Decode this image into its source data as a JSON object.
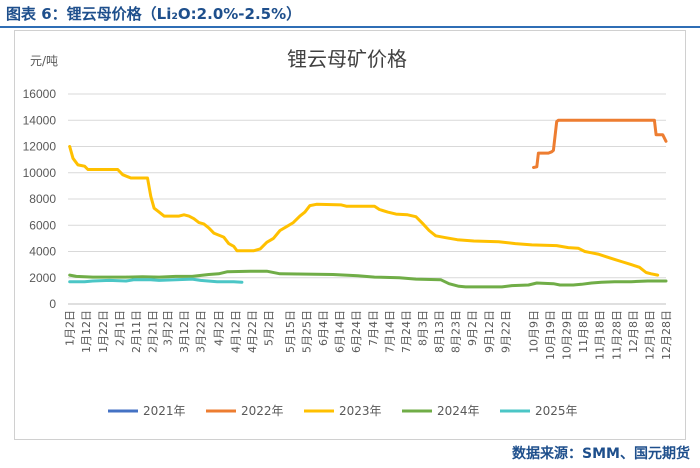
{
  "figure_title": "图表 6：锂云母价格（Li₂O:2.0%-2.5%）",
  "source": "数据来源：SMM、国元期货",
  "chart_data": {
    "type": "line",
    "title": "锂云母矿价格",
    "ylabel": "元/吨",
    "xlabel": "",
    "ylim": [
      0,
      16000
    ],
    "yticks": [
      0,
      2000,
      4000,
      6000,
      8000,
      10000,
      12000,
      14000,
      16000
    ],
    "xlim": [
      0,
      361
    ],
    "xticks": [
      {
        "label": "1月2日",
        "day": 1
      },
      {
        "label": "1月12日",
        "day": 11
      },
      {
        "label": "1月22日",
        "day": 21
      },
      {
        "label": "2月1日",
        "day": 31
      },
      {
        "label": "2月11日",
        "day": 41
      },
      {
        "label": "2月21日",
        "day": 51
      },
      {
        "label": "3月2日",
        "day": 60
      },
      {
        "label": "3月12日",
        "day": 70
      },
      {
        "label": "3月22日",
        "day": 80
      },
      {
        "label": "4月2日",
        "day": 91
      },
      {
        "label": "4月12日",
        "day": 101
      },
      {
        "label": "4月22日",
        "day": 111
      },
      {
        "label": "5月2日",
        "day": 121
      },
      {
        "label": "5月15日",
        "day": 134
      },
      {
        "label": "5月25日",
        "day": 144
      },
      {
        "label": "6月4日",
        "day": 154
      },
      {
        "label": "6月14日",
        "day": 164
      },
      {
        "label": "6月24日",
        "day": 174
      },
      {
        "label": "7月4日",
        "day": 184
      },
      {
        "label": "7月14日",
        "day": 194
      },
      {
        "label": "7月24日",
        "day": 204
      },
      {
        "label": "8月3日",
        "day": 214
      },
      {
        "label": "8月13日",
        "day": 224
      },
      {
        "label": "8月23日",
        "day": 234
      },
      {
        "label": "9月2日",
        "day": 244
      },
      {
        "label": "9月12日",
        "day": 254
      },
      {
        "label": "9月22日",
        "day": 264
      },
      {
        "label": "10月9日",
        "day": 281
      },
      {
        "label": "10月19日",
        "day": 291
      },
      {
        "label": "10月29日",
        "day": 301
      },
      {
        "label": "11月8日",
        "day": 311
      },
      {
        "label": "11月18日",
        "day": 321
      },
      {
        "label": "11月28日",
        "day": 331
      },
      {
        "label": "12月8日",
        "day": 341
      },
      {
        "label": "12月18日",
        "day": 351
      },
      {
        "label": "12月28日",
        "day": 361
      }
    ],
    "series": [
      {
        "name": "2021年",
        "color": "#4472c4",
        "points": []
      },
      {
        "name": "2022年",
        "color": "#ed7d31",
        "points": [
          [
            281,
            10400
          ],
          [
            283,
            10450
          ],
          [
            284,
            11500
          ],
          [
            290,
            11500
          ],
          [
            292,
            11600
          ],
          [
            293,
            11700
          ],
          [
            295,
            13900
          ],
          [
            296,
            14000
          ],
          [
            354,
            14000
          ],
          [
            355,
            12900
          ],
          [
            359,
            12900
          ],
          [
            361,
            12400
          ]
        ]
      },
      {
        "name": "2023年",
        "color": "#ffc000",
        "points": [
          [
            1,
            12000
          ],
          [
            3,
            11100
          ],
          [
            6,
            10600
          ],
          [
            10,
            10500
          ],
          [
            12,
            10250
          ],
          [
            30,
            10250
          ],
          [
            33,
            9850
          ],
          [
            36,
            9700
          ],
          [
            38,
            9600
          ],
          [
            48,
            9600
          ],
          [
            50,
            8200
          ],
          [
            52,
            7300
          ],
          [
            55,
            7000
          ],
          [
            58,
            6700
          ],
          [
            67,
            6700
          ],
          [
            70,
            6800
          ],
          [
            73,
            6700
          ],
          [
            76,
            6500
          ],
          [
            79,
            6200
          ],
          [
            82,
            6100
          ],
          [
            85,
            5800
          ],
          [
            88,
            5400
          ],
          [
            94,
            5100
          ],
          [
            97,
            4600
          ],
          [
            100,
            4400
          ],
          [
            102,
            4050
          ],
          [
            112,
            4050
          ],
          [
            116,
            4200
          ],
          [
            120,
            4700
          ],
          [
            124,
            5000
          ],
          [
            128,
            5600
          ],
          [
            132,
            5900
          ],
          [
            136,
            6200
          ],
          [
            140,
            6700
          ],
          [
            143,
            7000
          ],
          [
            146,
            7500
          ],
          [
            150,
            7600
          ],
          [
            165,
            7550
          ],
          [
            168,
            7450
          ],
          [
            185,
            7450
          ],
          [
            188,
            7200
          ],
          [
            193,
            7000
          ],
          [
            198,
            6850
          ],
          [
            205,
            6800
          ],
          [
            210,
            6650
          ],
          [
            214,
            6150
          ],
          [
            218,
            5600
          ],
          [
            222,
            5200
          ],
          [
            228,
            5050
          ],
          [
            235,
            4900
          ],
          [
            245,
            4800
          ],
          [
            260,
            4750
          ],
          [
            270,
            4600
          ],
          [
            280,
            4500
          ],
          [
            295,
            4450
          ],
          [
            302,
            4300
          ],
          [
            308,
            4250
          ],
          [
            312,
            4000
          ],
          [
            316,
            3900
          ],
          [
            320,
            3800
          ],
          [
            325,
            3600
          ],
          [
            330,
            3400
          ],
          [
            335,
            3200
          ],
          [
            340,
            3000
          ],
          [
            345,
            2800
          ],
          [
            349,
            2400
          ],
          [
            352,
            2300
          ],
          [
            356,
            2200
          ]
        ]
      },
      {
        "name": "2024年",
        "color": "#70ad47",
        "points": [
          [
            1,
            2200
          ],
          [
            5,
            2100
          ],
          [
            15,
            2050
          ],
          [
            35,
            2050
          ],
          [
            45,
            2080
          ],
          [
            55,
            2050
          ],
          [
            65,
            2100
          ],
          [
            75,
            2100
          ],
          [
            85,
            2250
          ],
          [
            91,
            2300
          ],
          [
            96,
            2450
          ],
          [
            110,
            2500
          ],
          [
            120,
            2500
          ],
          [
            128,
            2300
          ],
          [
            160,
            2250
          ],
          [
            175,
            2150
          ],
          [
            185,
            2050
          ],
          [
            200,
            2000
          ],
          [
            210,
            1900
          ],
          [
            225,
            1850
          ],
          [
            230,
            1550
          ],
          [
            236,
            1350
          ],
          [
            240,
            1300
          ],
          [
            255,
            1300
          ],
          [
            262,
            1300
          ],
          [
            268,
            1400
          ],
          [
            278,
            1450
          ],
          [
            283,
            1600
          ],
          [
            293,
            1550
          ],
          [
            297,
            1450
          ],
          [
            305,
            1450
          ],
          [
            310,
            1500
          ],
          [
            316,
            1600
          ],
          [
            322,
            1650
          ],
          [
            330,
            1700
          ],
          [
            340,
            1700
          ],
          [
            350,
            1750
          ],
          [
            361,
            1750
          ]
        ]
      },
      {
        "name": "2025年",
        "color": "#4bc6c6",
        "points": [
          [
            1,
            1700
          ],
          [
            10,
            1700
          ],
          [
            15,
            1750
          ],
          [
            25,
            1800
          ],
          [
            35,
            1750
          ],
          [
            40,
            1850
          ],
          [
            50,
            1850
          ],
          [
            55,
            1800
          ],
          [
            65,
            1850
          ],
          [
            75,
            1900
          ],
          [
            80,
            1800
          ],
          [
            90,
            1700
          ],
          [
            100,
            1700
          ],
          [
            105,
            1650
          ]
        ]
      }
    ]
  }
}
